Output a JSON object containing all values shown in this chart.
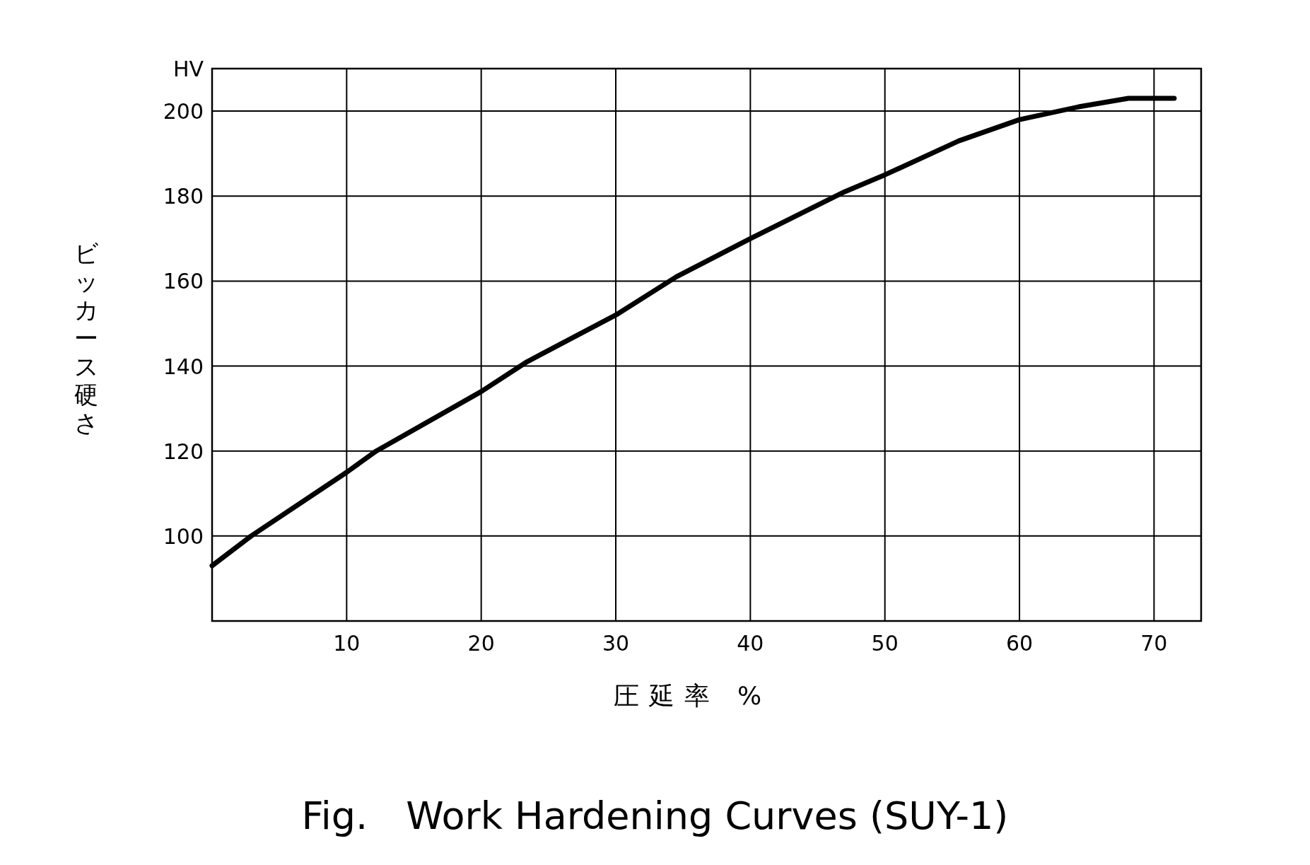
{
  "chart_data": {
    "type": "line",
    "title": "Fig.　Work Hardening Curves (SUY-1)",
    "xlabel": "圧延率 %",
    "ylabel": "ビッカース硬さ",
    "x": [
      0,
      2.9,
      10,
      12.2,
      20,
      23.4,
      30,
      34.5,
      40,
      47,
      50,
      55.5,
      60,
      64.4,
      68.1,
      71.5
    ],
    "series": [
      {
        "color": "#000000",
        "values": [
          93,
          100,
          115,
          120,
          134,
          141,
          152,
          161,
          170,
          181,
          185,
          193,
          198,
          201,
          203,
          203
        ]
      }
    ],
    "xlim": [
      0,
      73.5
    ],
    "ylim": [
      80,
      210
    ],
    "xticks": [
      10,
      20,
      30,
      40,
      50,
      60,
      70
    ],
    "yticks": [
      100,
      120,
      140,
      160,
      180,
      200,
      {
        "value": 210,
        "label": "HV"
      }
    ],
    "grid": true
  }
}
